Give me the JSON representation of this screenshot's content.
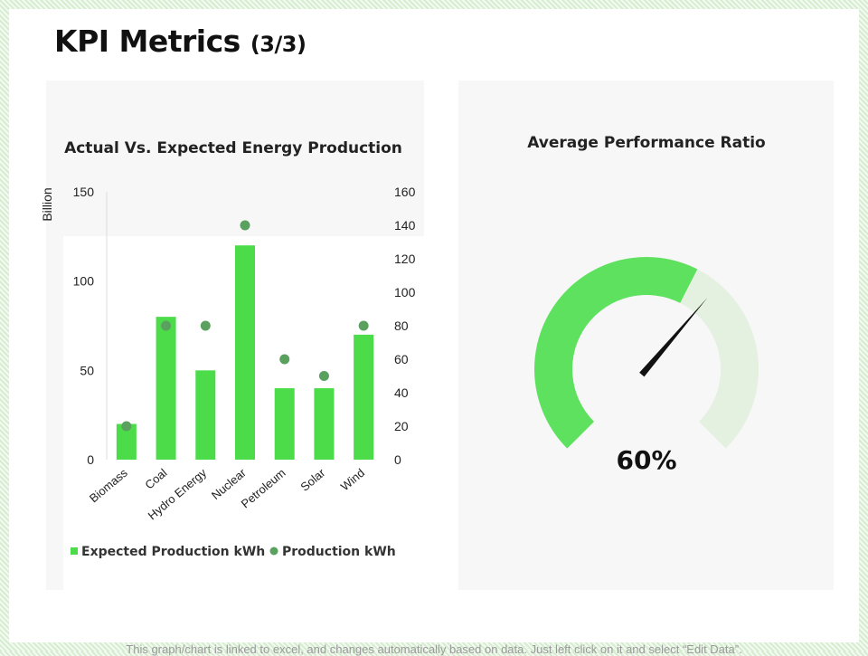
{
  "page": {
    "title": "KPI Metrics",
    "title_suffix": "(3/3)",
    "footer_note": "This graph/chart is linked to excel, and changes automatically based on data. Just left click on it and select “Edit Data”."
  },
  "colors": {
    "bar": "#4cdc4a",
    "dot": "#5aa15f",
    "gauge_filled": "#5ee15e",
    "gauge_empty": "#e5f1e0",
    "needle": "#111111"
  },
  "chart_data": [
    {
      "type": "bar",
      "title": "Actual Vs. Expected Energy Production",
      "ylabel": "Billion",
      "categories": [
        "Biomass",
        "Coal",
        "Hydro Energy",
        "Nuclear",
        "Petroleum",
        "Solar",
        "Wind"
      ],
      "series": [
        {
          "name": "Expected Production kWh",
          "type": "bar",
          "axis": "left",
          "values": [
            20,
            80,
            50,
            120,
            40,
            40,
            70
          ]
        },
        {
          "name": "Production kWh",
          "type": "scatter",
          "axis": "right",
          "values": [
            20,
            80,
            80,
            140,
            60,
            50,
            80
          ]
        }
      ],
      "ylim_left": [
        0,
        150
      ],
      "yticks_left": [
        0,
        50,
        100,
        150
      ],
      "ylim_right": [
        0,
        160
      ],
      "yticks_right": [
        0,
        20,
        40,
        60,
        80,
        100,
        120,
        140,
        160
      ],
      "legend_position": "bottom"
    },
    {
      "type": "gauge",
      "title": "Average Performance Ratio",
      "value": 60,
      "display": "60%",
      "min": 0,
      "max": 100
    }
  ]
}
